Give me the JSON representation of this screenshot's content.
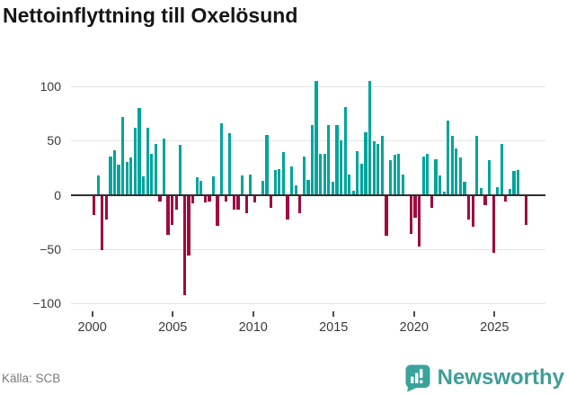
{
  "title": "Nettoinflyttning till Oxelösund",
  "source": "Källa: SCB",
  "brand": {
    "name": "Newsworthy",
    "icon": "newsworthy-pin-barchart-icon",
    "wordmark_color": "#3f9e98",
    "badge_color": "#3aa39c"
  },
  "colors": {
    "positive_bar": "#00a49c",
    "negative_bar": "#9e0b41",
    "gridline": "#e4e4e4",
    "zero_axis": "#303030",
    "axis_text": "#3a3a3a",
    "muted_text": "#7b7b7b",
    "title_text": "#161616"
  },
  "chart_data": {
    "type": "bar",
    "title": "Nettoinflyttning till Oxelösund",
    "xlabel": "",
    "ylabel": "",
    "x_unit": "quarter",
    "start": "2000 Q1",
    "end": "2026 Q2",
    "ylim": [
      -100,
      110
    ],
    "grid": true,
    "legend": false,
    "y_ticks": [
      100,
      50,
      0,
      -50,
      -100
    ],
    "x_tick_labels": [
      "2000",
      "2005",
      "2010",
      "2015",
      "2020",
      "2025"
    ],
    "values": [
      -18,
      18,
      -50,
      -22,
      35,
      41,
      28,
      72,
      30,
      34,
      62,
      80,
      17,
      62,
      38,
      47,
      -5,
      52,
      -36,
      -27,
      -13,
      46,
      -92,
      -55,
      -7,
      16,
      13,
      -6,
      -5,
      17,
      -28,
      66,
      -5,
      57,
      -13,
      -13,
      18,
      -16,
      19,
      -6,
      0,
      13,
      55,
      -11,
      23,
      24,
      39,
      -22,
      26,
      9,
      -16,
      35,
      14,
      64,
      105,
      38,
      38,
      64,
      12,
      64,
      50,
      81,
      19,
      4,
      40,
      29,
      58,
      105,
      49,
      47,
      54,
      -37,
      32,
      37,
      38,
      19,
      0,
      -35,
      -20,
      -47,
      35,
      38,
      -11,
      33,
      18,
      3,
      68,
      54,
      43,
      34,
      12,
      -22,
      -29,
      54,
      6,
      -9,
      32,
      -53,
      7,
      47,
      -5,
      5,
      22,
      23,
      0,
      -27
    ]
  }
}
